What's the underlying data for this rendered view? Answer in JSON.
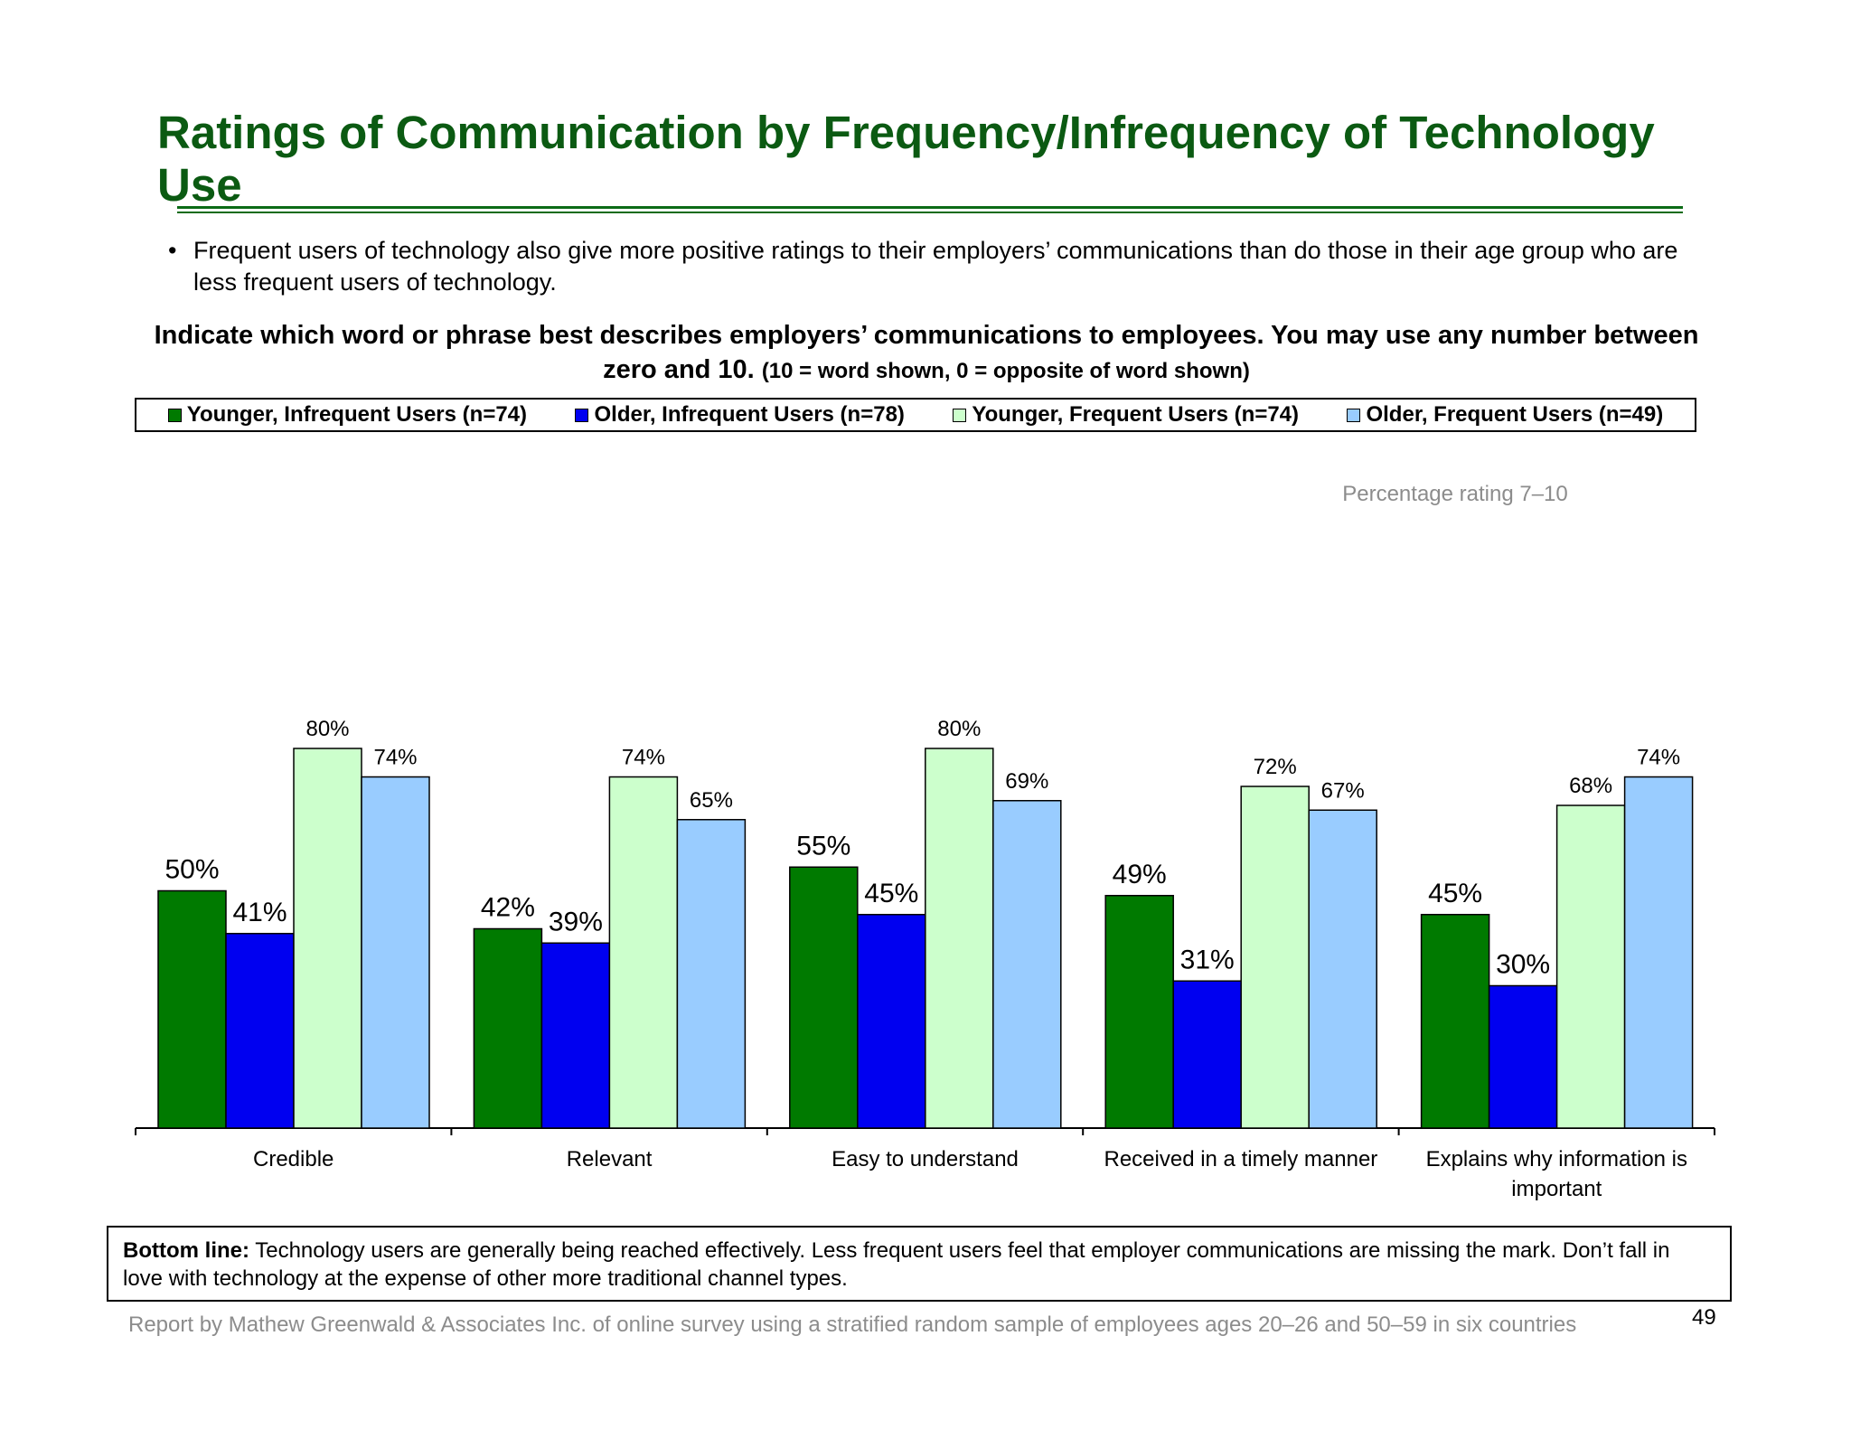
{
  "title": "Ratings of Communication by Frequency/Infrequency of Technology Use",
  "bullet": "Frequent users of technology also give more positive ratings to their employers’ communications than do those in their age group who are less frequent users of technology.",
  "bullet_marker": "•",
  "question": {
    "main": "Indicate which word or phrase best describes employers’ communications to employees. You may use any number between zero and 10.",
    "note": "(10 = word shown, 0 = opposite of word shown)"
  },
  "legend": [
    {
      "label": "Younger, Infrequent Users (n=74)",
      "color": "#007a00"
    },
    {
      "label": "Older, Infrequent Users (n=78)",
      "color": "#0000f0"
    },
    {
      "label": "Younger, Frequent Users (n=74)",
      "color": "#ccffcc"
    },
    {
      "label": "Older, Frequent Users (n=49)",
      "color": "#99ccff"
    }
  ],
  "chart_data": {
    "type": "bar",
    "annotation": "Percentage rating 7–10",
    "categories": [
      "Credible",
      "Relevant",
      "Easy to understand",
      "Received in a timely manner",
      "Explains why information is important"
    ],
    "category_lines": [
      [
        "Credible"
      ],
      [
        "Relevant"
      ],
      [
        "Easy to understand"
      ],
      [
        "Received in a timely manner"
      ],
      [
        "Explains why information is",
        "important"
      ]
    ],
    "series": [
      {
        "name": "Younger, Infrequent Users (n=74)",
        "color": "#007a00",
        "values": [
          50,
          42,
          55,
          49,
          45
        ],
        "labels": [
          "50%",
          "42%",
          "55%",
          "49%",
          "45%"
        ]
      },
      {
        "name": "Older, Infrequent Users (n=78)",
        "color": "#0000f0",
        "values": [
          41,
          39,
          45,
          31,
          30
        ],
        "labels": [
          "41%",
          "39%",
          "45%",
          "31%",
          "30%"
        ]
      },
      {
        "name": "Younger, Frequent Users (n=74)",
        "color": "#ccffcc",
        "values": [
          80,
          74,
          80,
          72,
          68
        ],
        "labels": [
          "80%",
          "74%",
          "80%",
          "72%",
          "68%"
        ]
      },
      {
        "name": "Older, Frequent Users (n=49)",
        "color": "#99ccff",
        "values": [
          74,
          65,
          69,
          67,
          74
        ],
        "labels": [
          "74%",
          "65%",
          "69%",
          "67%",
          "74%"
        ]
      }
    ],
    "ylim": [
      0,
      100
    ],
    "grid": false,
    "legend_position": "top"
  },
  "bottom_line": {
    "label": "Bottom line:",
    "text": "Technology users are generally being reached effectively. Less frequent users feel that employer communications are missing the mark. Don’t fall in love with technology at the expense of other more traditional channel types."
  },
  "footer": "Report by Mathew Greenwald & Associates Inc. of online survey using a stratified random sample of employees ages 20–26 and 50–59 in six countries",
  "page_number": "49"
}
